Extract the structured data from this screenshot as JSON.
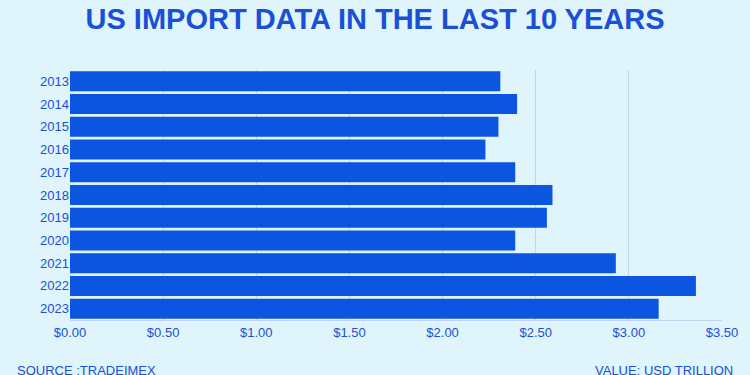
{
  "chart_data": {
    "type": "bar",
    "orientation": "horizontal",
    "title": "US IMPORT DATA IN THE LAST 10 YEARS",
    "categories": [
      "2013",
      "2014",
      "2015",
      "2016",
      "2017",
      "2018",
      "2019",
      "2020",
      "2021",
      "2022",
      "2023"
    ],
    "values": [
      2.31,
      2.4,
      2.3,
      2.23,
      2.39,
      2.59,
      2.56,
      2.39,
      2.93,
      3.36,
      3.16
    ],
    "color": "#0b55e0",
    "xlim": [
      0,
      3.5
    ],
    "xticks": [
      {
        "value": 0,
        "label": "$0.00"
      },
      {
        "value": 0.5,
        "label": "$0.50"
      },
      {
        "value": 1,
        "label": "$1.00"
      },
      {
        "value": 1.5,
        "label": "$1.50"
      },
      {
        "value": 2,
        "label": "$2.00"
      },
      {
        "value": 2.5,
        "label": "$2.50"
      },
      {
        "value": 3,
        "label": "$3.00"
      },
      {
        "value": 3.5,
        "label": "$3.50"
      }
    ],
    "grid": true,
    "annotations": [
      "SOURCE :TRADEIMEX",
      "VALUE: USD TRILLION"
    ]
  }
}
